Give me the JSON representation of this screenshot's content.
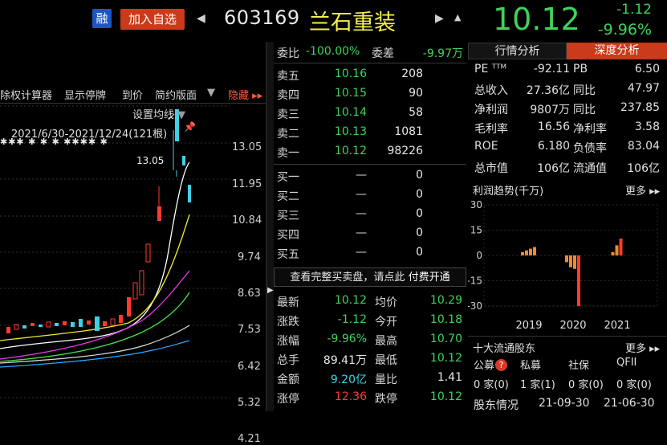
{
  "header": {
    "rong_label": "融",
    "add_watchlist": "加入自选",
    "prev_arrow": "◀",
    "next_arrow": "▶",
    "bell": "▲",
    "code": "603169",
    "name": "兰石重装",
    "price": "10.12",
    "change": "-1.12",
    "change_pct": "-9.96%",
    "colors": {
      "down": "#3fd25a",
      "up": "#ff3b30",
      "name": "#f5f04a",
      "accent": "#c93b1a"
    }
  },
  "chart_panel": {
    "toolbar": [
      "除权计算器",
      "显示停牌",
      "到价",
      "简约版面",
      "隐藏 ▸▸"
    ],
    "toolbar_dropdown": "▼",
    "setting_label": "设置均线",
    "range_label": "2021/6/30-2021/12/24(121根)",
    "high_marker": "13.05",
    "y_ticks": [
      "13.05",
      "11.95",
      "10.84",
      "9.74",
      "8.63",
      "7.53",
      "6.42",
      "5.32",
      "4.21"
    ],
    "stars": "✱✱✱ ✱ ✱ ✱ ✱✱✱✱ ✱"
  },
  "order_book": {
    "webi_label": "委比",
    "webi_value": "-100.00%",
    "weicha_label": "委差",
    "weicha_value": "-9.97万",
    "asks": [
      {
        "label": "卖五",
        "price": "10.16",
        "vol": "208"
      },
      {
        "label": "卖四",
        "price": "10.15",
        "vol": "90"
      },
      {
        "label": "卖三",
        "price": "10.14",
        "vol": "58"
      },
      {
        "label": "卖二",
        "price": "10.13",
        "vol": "1081"
      },
      {
        "label": "卖一",
        "price": "10.12",
        "vol": "98226"
      }
    ],
    "bids": [
      {
        "label": "买一",
        "price": "—",
        "vol": "0"
      },
      {
        "label": "买二",
        "price": "—",
        "vol": "0"
      },
      {
        "label": "买三",
        "price": "—",
        "vol": "0"
      },
      {
        "label": "买四",
        "price": "—",
        "vol": "0"
      },
      {
        "label": "买五",
        "price": "—",
        "vol": "0"
      }
    ],
    "paywall_text": "查看完整买卖盘，请点此",
    "paywall_link": "付费开通",
    "stats": [
      {
        "k1": "最新",
        "v1": "10.12",
        "c1": "#3fd25a",
        "k2": "均价",
        "v2": "10.29",
        "c2": "#3fd25a"
      },
      {
        "k1": "涨跌",
        "v1": "-1.12",
        "c1": "#3fd25a",
        "k2": "今开",
        "v2": "10.18",
        "c2": "#3fd25a"
      },
      {
        "k1": "涨幅",
        "v1": "-9.96%",
        "c1": "#3fd25a",
        "k2": "最高",
        "v2": "10.70",
        "c2": "#3fd25a"
      },
      {
        "k1": "总手",
        "v1": "89.41万",
        "c1": "#e6e6e6",
        "k2": "最低",
        "v2": "10.12",
        "c2": "#3fd25a"
      },
      {
        "k1": "金额",
        "v1": "9.20亿",
        "c1": "#3fd0e6",
        "k2": "量比",
        "v2": "1.41",
        "c2": "#e6e6e6"
      },
      {
        "k1": "涨停",
        "v1": "12.36",
        "c1": "#ff3b30",
        "k2": "跌停",
        "v2": "10.12",
        "c2": "#3fd25a"
      }
    ]
  },
  "right_panel": {
    "tab_market": "行情分析",
    "tab_deep": "深度分析",
    "fundamentals": [
      {
        "k1": "PE ᵀᵀᴹ",
        "v1": "-92.11",
        "k2": "PB",
        "v2": "6.50"
      },
      {
        "k1": "总收入",
        "v1": "27.36亿",
        "k2": "同比",
        "v2": "47.97"
      },
      {
        "k1": "净利润",
        "v1": "9807万",
        "k2": "同比",
        "v2": "237.85"
      },
      {
        "k1": "毛利率",
        "v1": "16.56",
        "k2": "净利率",
        "v2": "3.58"
      },
      {
        "k1": "ROE",
        "v1": "6.180",
        "k2": "负债率",
        "v2": "83.04"
      },
      {
        "k1": "总市值",
        "v1": "106亿",
        "k2": "流通值",
        "v2": "106亿"
      }
    ],
    "profit_title": "利润趋势(千万)",
    "more": "更多 ▸▸",
    "holders_title": "十大流通股东",
    "holder_badge": "?",
    "holders": [
      {
        "label": "公募",
        "value": "0 家(0)"
      },
      {
        "label": "私募",
        "value": "1 家(1)"
      },
      {
        "label": "社保",
        "value": "0 家(0)"
      },
      {
        "label": "QFII",
        "value": "0 家(0)"
      }
    ],
    "shareholders_label": "股东情况",
    "shareholders_dates": [
      "21-09-30",
      "21-06-30"
    ]
  },
  "chart_data": {
    "type": "bar",
    "title": "利润趋势(千万)",
    "xlabel": "",
    "ylabel": "",
    "ylim": [
      -30,
      30
    ],
    "y_ticks": [
      30,
      15,
      0,
      -15,
      -30
    ],
    "x_tick_labels": [
      "2019",
      "2020",
      "2021"
    ],
    "groups": [
      {
        "year": "2019",
        "values": [
          2,
          3,
          4,
          5
        ],
        "color": "#f08a2a"
      },
      {
        "year": "2020",
        "values": [
          -4,
          -7,
          -8,
          -30
        ],
        "color": "#f08a2a",
        "last_color": "#ff3b30"
      },
      {
        "year": "2021",
        "values": [
          2,
          6,
          10
        ],
        "color": "#f08a2a",
        "last_color": "#ff3b30"
      }
    ]
  }
}
